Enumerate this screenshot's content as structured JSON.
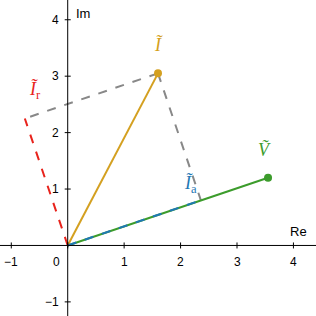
{
  "chart_data": {
    "type": "vector",
    "xlabel": "Re",
    "ylabel": "Im",
    "xlim": [
      -1.2,
      4.4
    ],
    "ylim": [
      -1.25,
      4.35
    ],
    "xticks": [
      {
        "value": -1,
        "label": "−1"
      },
      0,
      1,
      2,
      3,
      4
    ],
    "yticks": [
      {
        "value": -1,
        "label": "−1"
      },
      1,
      2,
      3,
      4
    ],
    "grid": false,
    "series": [
      {
        "name": "Ĩ",
        "color": "#d4a020",
        "x": 1.6,
        "y": 3.05,
        "line_style": "solid",
        "marker": "circle"
      },
      {
        "name": "Ṽ",
        "color": "#3c9c2c",
        "x": 3.55,
        "y": 1.2,
        "line_style": "solid",
        "marker": "circle"
      },
      {
        "name": "Ĩ",
        "subscript": "a",
        "color": "#1f78b4",
        "x": 2.36,
        "y": 0.8,
        "line_style": "dashed",
        "marker": "none"
      },
      {
        "name": "Ĩ",
        "subscript": "r",
        "color": "#e8231c",
        "x": -0.76,
        "y": 2.25,
        "line_style": "dashed",
        "marker": "none"
      }
    ]
  }
}
